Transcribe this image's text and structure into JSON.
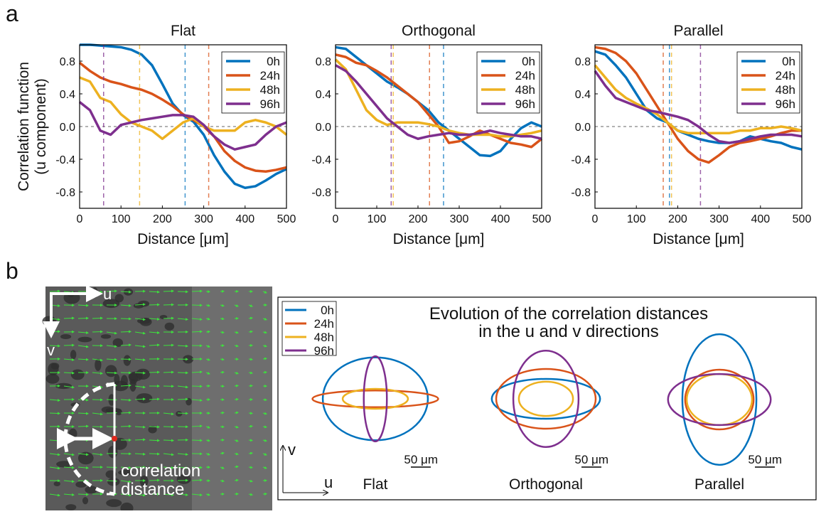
{
  "panel_labels": [
    "a",
    "b"
  ],
  "chart_data": [
    {
      "type": "line",
      "title": "Flat",
      "xlabel": "Distance [μm]",
      "ylabel": [
        "Correlation function",
        "(u component)"
      ],
      "x": [
        0,
        25,
        50,
        75,
        100,
        125,
        150,
        175,
        200,
        225,
        250,
        275,
        300,
        325,
        350,
        375,
        400,
        425,
        450,
        475,
        500
      ],
      "xlim": [
        0,
        500
      ],
      "ylim": [
        -1,
        1
      ],
      "xticks": [
        0,
        100,
        200,
        300,
        400,
        500
      ],
      "yticks": [
        -0.8,
        -0.4,
        {
          "value": 0,
          "label": "0.0"
        },
        0.4,
        0.8
      ],
      "zero_line": true,
      "legend": "upper right",
      "series": [
        {
          "name": "0h",
          "color": "#0072bd",
          "values": [
            1.0,
            1.0,
            0.99,
            0.98,
            0.97,
            0.94,
            0.88,
            0.75,
            0.52,
            0.28,
            0.14,
            0.06,
            -0.1,
            -0.35,
            -0.55,
            -0.7,
            -0.75,
            -0.73,
            -0.66,
            -0.58,
            -0.52
          ],
          "corr_distance": 255
        },
        {
          "name": "24h",
          "color": "#d95319",
          "values": [
            0.78,
            0.68,
            0.6,
            0.55,
            0.52,
            0.48,
            0.45,
            0.4,
            0.33,
            0.25,
            0.15,
            0.08,
            0.0,
            -0.12,
            -0.3,
            -0.42,
            -0.5,
            -0.54,
            -0.55,
            -0.53,
            -0.5
          ],
          "corr_distance": 312
        },
        {
          "name": "48h",
          "color": "#edb120",
          "values": [
            0.6,
            0.55,
            0.35,
            0.3,
            0.15,
            0.05,
            0.0,
            -0.05,
            -0.15,
            -0.05,
            0.05,
            0.1,
            0.0,
            -0.05,
            -0.05,
            -0.05,
            0.05,
            0.08,
            0.05,
            0.0,
            -0.1
          ],
          "corr_distance": 145
        },
        {
          "name": "96h",
          "color": "#7e2f8e",
          "values": [
            0.3,
            0.2,
            -0.05,
            -0.1,
            0.02,
            0.05,
            0.08,
            0.1,
            0.12,
            0.14,
            0.14,
            0.12,
            0.02,
            -0.12,
            -0.22,
            -0.28,
            -0.25,
            -0.22,
            -0.1,
            0.0,
            0.05
          ],
          "corr_distance": 58
        }
      ]
    },
    {
      "type": "line",
      "title": "Orthogonal",
      "xlabel": "Distance [μm]",
      "x": [
        0,
        25,
        50,
        75,
        100,
        125,
        150,
        175,
        200,
        225,
        250,
        275,
        300,
        325,
        350,
        375,
        400,
        425,
        450,
        475,
        500
      ],
      "xlim": [
        0,
        500
      ],
      "ylim": [
        -1,
        1
      ],
      "xticks": [
        0,
        100,
        200,
        300,
        400,
        500
      ],
      "yticks": [
        -0.8,
        -0.4,
        {
          "value": 0,
          "label": "0.0"
        },
        0.4,
        0.8
      ],
      "zero_line": true,
      "legend": "upper right",
      "series": [
        {
          "name": "0h",
          "color": "#0072bd",
          "values": [
            0.97,
            0.95,
            0.85,
            0.75,
            0.65,
            0.55,
            0.48,
            0.4,
            0.3,
            0.2,
            0.05,
            -0.05,
            -0.15,
            -0.25,
            -0.35,
            -0.36,
            -0.3,
            -0.15,
            -0.02,
            0.05,
            0.0
          ],
          "corr_distance": 262
        },
        {
          "name": "24h",
          "color": "#d95319",
          "values": [
            0.88,
            0.85,
            0.78,
            0.75,
            0.68,
            0.6,
            0.5,
            0.4,
            0.3,
            0.15,
            0.0,
            -0.2,
            -0.18,
            -0.12,
            -0.05,
            -0.1,
            -0.15,
            -0.2,
            -0.22,
            -0.25,
            -0.15
          ],
          "corr_distance": 228
        },
        {
          "name": "48h",
          "color": "#edb120",
          "values": [
            0.82,
            0.7,
            0.45,
            0.2,
            0.08,
            0.02,
            0.05,
            0.05,
            0.05,
            0.03,
            0.0,
            -0.05,
            -0.08,
            -0.1,
            -0.1,
            -0.1,
            -0.12,
            -0.12,
            -0.1,
            -0.08,
            -0.05
          ],
          "corr_distance": 140
        },
        {
          "name": "96h",
          "color": "#7e2f8e",
          "values": [
            0.75,
            0.68,
            0.55,
            0.4,
            0.25,
            0.1,
            0.0,
            -0.1,
            -0.15,
            -0.12,
            -0.1,
            -0.08,
            -0.1,
            -0.1,
            -0.08,
            -0.05,
            -0.08,
            -0.1,
            -0.12,
            -0.12,
            -0.15
          ],
          "corr_distance": 135
        }
      ]
    },
    {
      "type": "line",
      "title": "Parallel",
      "xlabel": "Distance [μm]",
      "x": [
        0,
        25,
        50,
        75,
        100,
        125,
        150,
        175,
        200,
        225,
        250,
        275,
        300,
        325,
        350,
        375,
        400,
        425,
        450,
        475,
        500
      ],
      "xlim": [
        0,
        500
      ],
      "ylim": [
        -1,
        1
      ],
      "xticks": [
        0,
        100,
        200,
        300,
        400,
        500
      ],
      "yticks": [
        -0.8,
        -0.4,
        {
          "value": 0,
          "label": "0.0"
        },
        0.4,
        0.8
      ],
      "zero_line": true,
      "legend": "upper right",
      "series": [
        {
          "name": "0h",
          "color": "#0072bd",
          "values": [
            0.92,
            0.88,
            0.75,
            0.6,
            0.4,
            0.2,
            0.1,
            0.05,
            -0.05,
            -0.1,
            -0.15,
            -0.18,
            -0.2,
            -0.2,
            -0.18,
            -0.12,
            -0.15,
            -0.18,
            -0.2,
            -0.25,
            -0.28
          ],
          "corr_distance": 180
        },
        {
          "name": "24h",
          "color": "#d95319",
          "values": [
            0.97,
            0.95,
            0.9,
            0.8,
            0.65,
            0.45,
            0.25,
            0.05,
            -0.15,
            -0.3,
            -0.4,
            -0.44,
            -0.35,
            -0.25,
            -0.2,
            -0.18,
            -0.15,
            -0.12,
            -0.08,
            -0.05,
            -0.05
          ],
          "corr_distance": 165
        },
        {
          "name": "48h",
          "color": "#edb120",
          "values": [
            0.75,
            0.6,
            0.45,
            0.35,
            0.28,
            0.22,
            0.15,
            0.05,
            -0.05,
            -0.08,
            -0.08,
            -0.08,
            -0.08,
            -0.08,
            -0.05,
            -0.05,
            -0.02,
            -0.02,
            0.0,
            -0.02,
            -0.05
          ],
          "corr_distance": 185
        },
        {
          "name": "96h",
          "color": "#7e2f8e",
          "values": [
            0.68,
            0.5,
            0.35,
            0.3,
            0.25,
            0.2,
            0.18,
            0.15,
            0.12,
            0.08,
            0.0,
            -0.1,
            -0.18,
            -0.2,
            -0.18,
            -0.15,
            -0.12,
            -0.1,
            -0.1,
            -0.1,
            -0.12
          ],
          "corr_distance": 255
        }
      ]
    }
  ],
  "panel_b": {
    "image": {
      "u_label": "u",
      "v_label": "v",
      "annotation": [
        "correlation",
        "distance"
      ]
    },
    "diagram": {
      "title": [
        "Evolution of the correlation distances",
        "in the u and v directions"
      ],
      "axis_labels": {
        "u": "u",
        "v": "v"
      },
      "scale_bar": {
        "value": 50,
        "label": "50 μm"
      },
      "series": [
        {
          "name": "0h",
          "color": "#0072bd"
        },
        {
          "name": "24h",
          "color": "#d95319"
        },
        {
          "name": "48h",
          "color": "#edb120"
        },
        {
          "name": "96h",
          "color": "#7e2f8e"
        }
      ],
      "groups": [
        {
          "label": "Flat",
          "u": [
            132,
            158,
            82,
            29
          ],
          "v": [
            104,
            21,
            25,
            107
          ]
        },
        {
          "label": "Orthogonal",
          "u": [
            136,
            125,
            68,
            82
          ],
          "v": [
            50,
            75,
            43,
            121
          ]
        },
        {
          "label": "Parallel",
          "u": [
            93,
            86,
            82,
            129
          ],
          "v": [
            164,
            75,
            64,
            64
          ]
        }
      ]
    }
  }
}
